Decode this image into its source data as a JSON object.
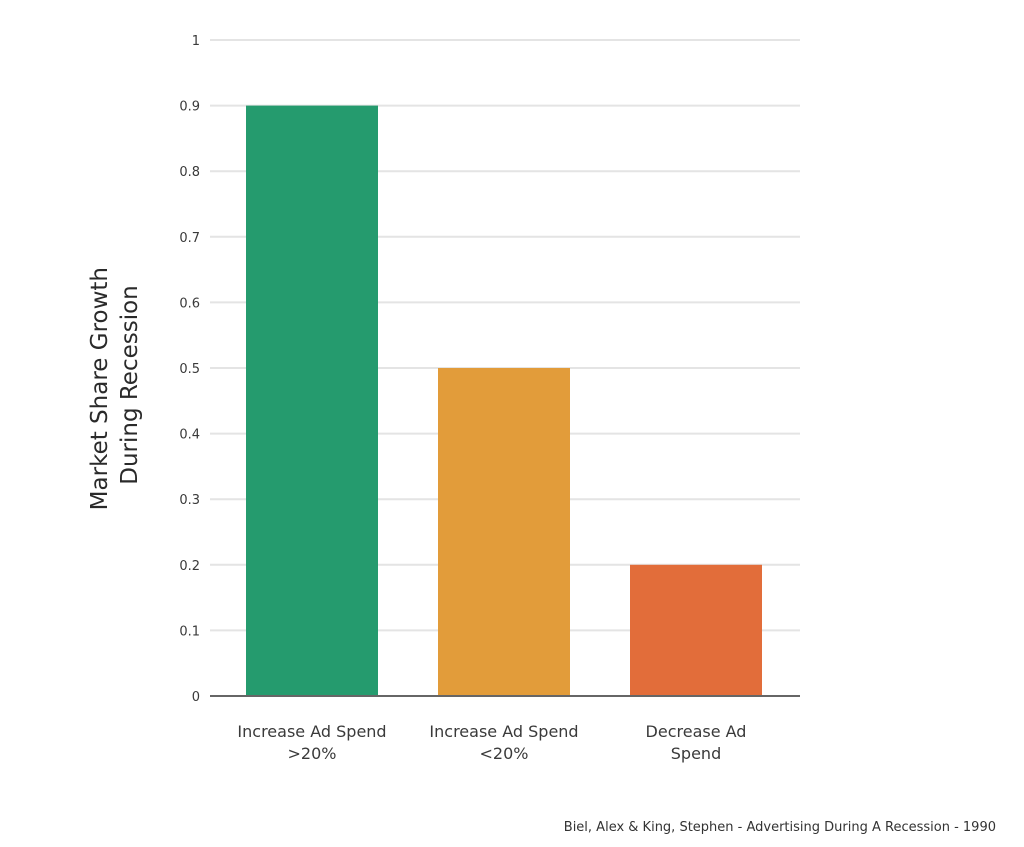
{
  "chart_data": {
    "type": "bar",
    "categories": [
      [
        "Increase Ad Spend",
        ">20%"
      ],
      [
        "Increase Ad Spend",
        "<20%"
      ],
      [
        "Decrease Ad",
        "Spend"
      ]
    ],
    "values": [
      0.9,
      0.5,
      0.2
    ],
    "bar_colors": [
      "#259b6e",
      "#e29c3a",
      "#e26d3a"
    ],
    "ylabel": [
      "Market Share Growth",
      "During Recession"
    ],
    "xlabel": "",
    "ylim": [
      0,
      1
    ],
    "yticks": [
      0,
      0.1,
      0.2,
      0.3,
      0.4,
      0.5,
      0.6,
      0.7,
      0.8,
      0.9,
      1
    ],
    "ytick_labels": [
      "0",
      "0.1",
      "0.2",
      "0.3",
      "0.4",
      "0.5",
      "0.6",
      "0.7",
      "0.8",
      "0.9",
      "1"
    ],
    "grid": true,
    "legend": false,
    "gridline_color": "#e4e4e4",
    "axis_color": "#666666"
  },
  "source_note": "Biel, Alex & King, Stephen - Advertising During A Recession - 1990"
}
